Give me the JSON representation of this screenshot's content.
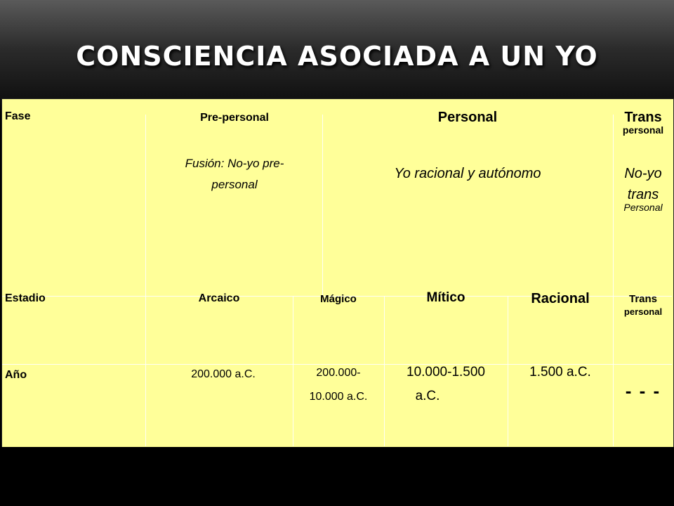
{
  "title": "CONSCIENCIA ASOCIADA A UN YO",
  "table": {
    "row_fase": {
      "label": "Fase",
      "pre_personal": "Pre-personal",
      "pre_personal_desc_1": "Fusión: No-yo pre-",
      "pre_personal_desc_2": "personal",
      "personal": "Personal",
      "personal_desc": "Yo racional y autónomo",
      "trans_1": "Trans",
      "trans_2": "personal",
      "trans_desc_1": "No-yo",
      "trans_desc_2": "trans",
      "trans_desc_3": "Personal"
    },
    "row_estadio": {
      "label": "Estadio",
      "arcaico": "Arcaico",
      "magico": "Mágico",
      "mitico": "Mítico",
      "racional": "Racional",
      "trans_1": "Trans",
      "trans_2": "personal"
    },
    "row_ano": {
      "label": "Año",
      "arcaico": "200.000 a.C.",
      "magico_1": "200.000-",
      "magico_2": "10.000 a.C.",
      "mitico_1": "10.000-1.500",
      "mitico_2": "a.C.",
      "racional": "1.500 a.C.",
      "trans": "- - -"
    }
  }
}
